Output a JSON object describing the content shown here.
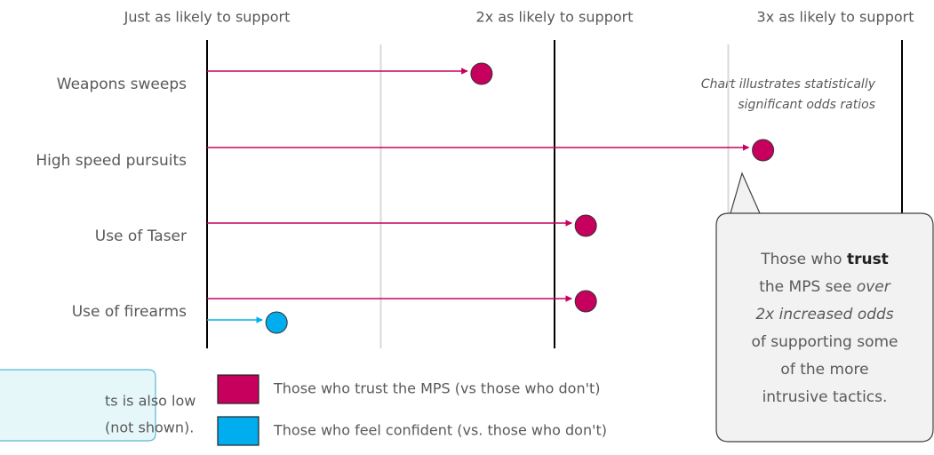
{
  "chart_data": {
    "type": "odds_arrows",
    "categories": [
      "Weapons sweeps",
      "High speed pursuits",
      "Use of Taser",
      "Use of firearms"
    ],
    "series": [
      {
        "name": "Those who trust the MPS (vs those who don't)",
        "color": "#c7005e",
        "values": [
          1.79,
          2.6,
          2.09,
          2.09
        ]
      },
      {
        "name": "Those who feel confident (vs. those who don't)",
        "color": "#00aeef",
        "values": [
          null,
          null,
          null,
          1.2
        ]
      }
    ],
    "xlim": [
      1,
      3
    ],
    "xticks": [
      {
        "value": 1,
        "label": "Just as likely to support"
      },
      {
        "value": 2,
        "label": "2x as likely to support"
      },
      {
        "value": 3,
        "label": "3x as likely to support"
      }
    ],
    "minor_xticks": [
      1.5,
      2.5
    ],
    "annotation": [
      "Chart illustrates statistically",
      "significant odds ratios"
    ],
    "callout": [
      [
        {
          "text": "Those who "
        },
        {
          "text": "trust",
          "bold": true
        }
      ],
      [
        {
          "text": "the MPS see "
        },
        {
          "text": "over",
          "italic": true
        }
      ],
      [
        {
          "text": "2x increased odds",
          "italic": true
        }
      ],
      [
        {
          "text": "of supporting some"
        }
      ],
      [
        {
          "text": "of the more"
        }
      ],
      [
        {
          "text": "intrusive tactics."
        }
      ]
    ],
    "side_note": [
      "ts is also low",
      "(not shown)."
    ]
  }
}
